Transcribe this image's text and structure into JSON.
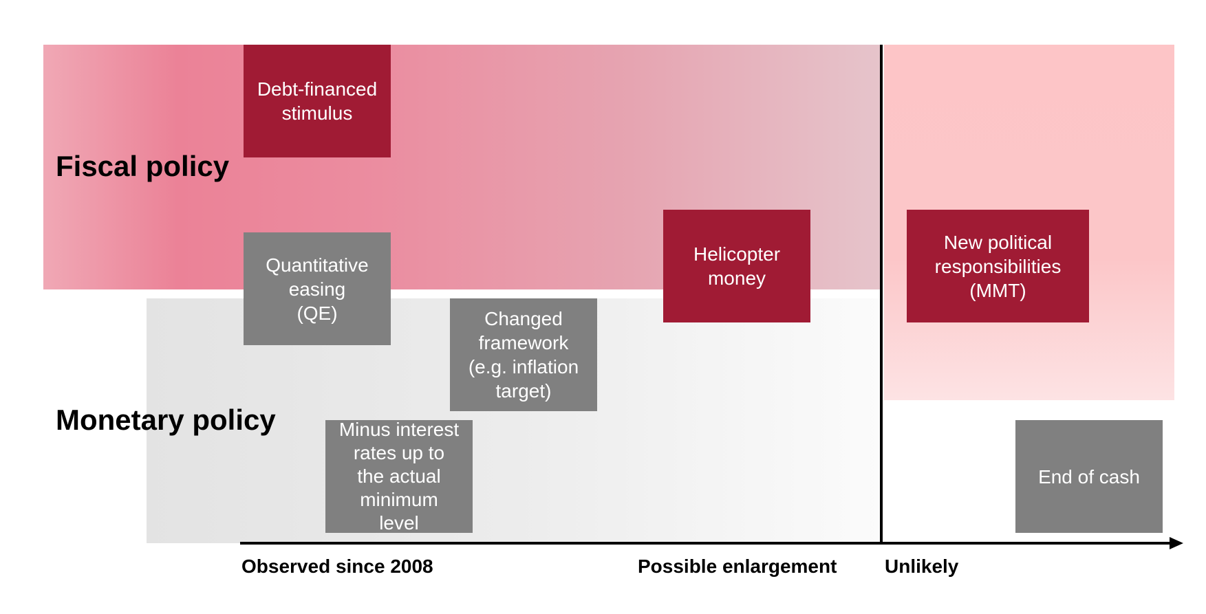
{
  "sections": {
    "fiscal": "Fiscal policy",
    "monetary": "Monetary policy"
  },
  "boxes": {
    "debt_financed_stimulus": {
      "lines": [
        "Debt-financed",
        "stimulus"
      ],
      "color": "#a01b34"
    },
    "quantitative_easing": {
      "lines": [
        "Quantitative",
        "easing",
        "(QE)"
      ],
      "color": "#808080"
    },
    "changed_framework": {
      "lines": [
        "Changed",
        "framework",
        "(e.g. inflation",
        "target)"
      ],
      "color": "#808080"
    },
    "minus_interest_rates": {
      "lines": [
        "Minus interest",
        "rates up to",
        "the actual",
        "minimum",
        "level"
      ],
      "color": "#808080"
    },
    "helicopter_money": {
      "lines": [
        "Helicopter",
        "money"
      ],
      "color": "#a01b34"
    },
    "new_political_responsibilities": {
      "lines": [
        "New political",
        "responsibilities",
        "(MMT)"
      ],
      "color": "#a01b34"
    },
    "end_of_cash": {
      "lines": [
        "End of cash"
      ],
      "color": "#808080"
    }
  },
  "axis": {
    "observed": "Observed since 2008",
    "possible": "Possible enlargement",
    "unlikely": "Unlikely"
  },
  "colors": {
    "fiscal_band": "#eb8297",
    "monetary_band": "#e3e3e3",
    "unlikely_band": "#fdc5c7",
    "red_box": "#a01b34",
    "grey_box": "#808080"
  }
}
